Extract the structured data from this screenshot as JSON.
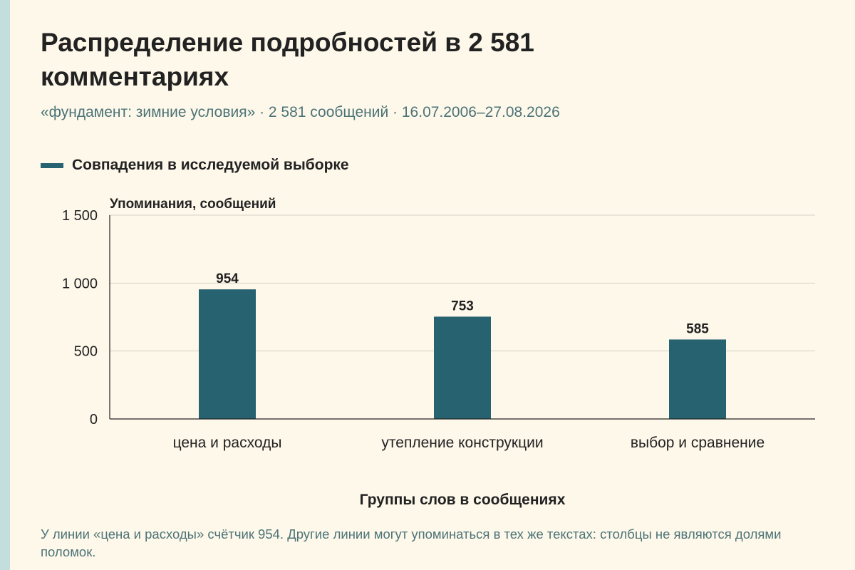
{
  "title": "Распределение подробностей в 2 581 комментариях",
  "subtitle": "«фундамент: зимние условия» · 2 581 сообщений · 16.07.2006–27.08.2026",
  "note": "У линии «цена и расходы» счётчик 954. Другие линии могут упоминаться в тех же текстах: столбцы не являются долями поломок.",
  "colors": {
    "bar": "#26626f",
    "background": "#fdf8ea",
    "stripe": "#c3dedd",
    "muted_text": "#4d7377"
  },
  "chart_data": {
    "type": "bar",
    "categories": [
      "цена и расходы",
      "утепление конструкции",
      "выбор и сравнение"
    ],
    "series": [
      {
        "name": "Совпадения в исследуемой выборке",
        "values": [
          954,
          753,
          585
        ]
      }
    ],
    "xlabel": "Группы слов в сообщениях",
    "ylabel": "Упоминания, сообщений",
    "ylim": [
      0,
      1500
    ],
    "yticks": [
      0,
      500,
      1000,
      1500
    ],
    "ytick_labels": [
      "0",
      "500",
      "1 000",
      "1 500"
    ],
    "grid": true,
    "legend": "top-left"
  }
}
